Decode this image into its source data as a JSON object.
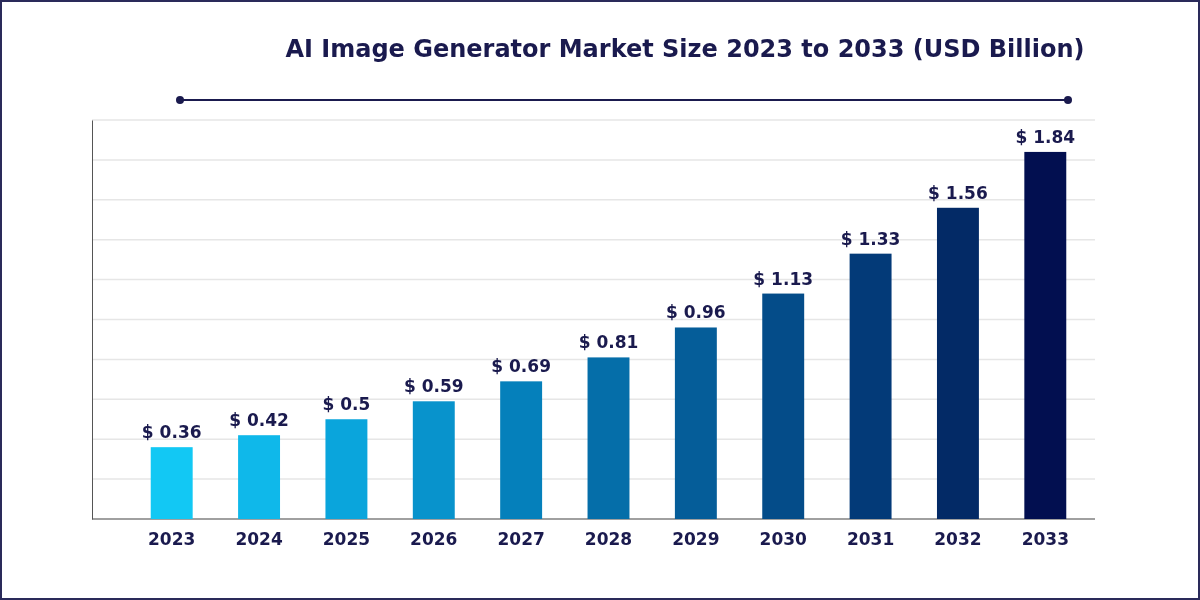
{
  "chart_data": {
    "type": "bar",
    "title": "AI Image Generator Market Size 2023 to 2033 (USD Billion)",
    "categories": [
      "2023",
      "2024",
      "2025",
      "2026",
      "2027",
      "2028",
      "2029",
      "2030",
      "2031",
      "2032",
      "2033"
    ],
    "values": [
      0.36,
      0.42,
      0.5,
      0.59,
      0.69,
      0.81,
      0.96,
      1.13,
      1.33,
      1.56,
      1.84
    ],
    "colors": [
      "#12c8f4",
      "#0fb8ea",
      "#0aa5dc",
      "#0893cc",
      "#0580bb",
      "#056ea9",
      "#055d99",
      "#044c89",
      "#033a78",
      "#032a66",
      "#020f50"
    ],
    "value_labels": [
      "$ 0.36",
      "$ 0.42",
      "$ 0.5",
      "$ 0.59",
      "$ 0.69",
      "$ 0.81",
      "$ 0.96",
      "$ 1.13",
      "$ 1.33",
      "$ 1.56",
      "$ 1.84"
    ],
    "ylim": [
      0,
      2
    ],
    "yticks": [
      {
        "value": 0,
        "label": null
      },
      {
        "value": 0.2,
        "label": null
      },
      {
        "value": 0.4,
        "label": null
      },
      {
        "value": 0.6,
        "label": null
      },
      {
        "value": 0.8,
        "label": null
      },
      {
        "value": 1,
        "label": null
      },
      {
        "value": 1.2,
        "label": null
      },
      {
        "value": 1.4,
        "label": null
      },
      {
        "value": 1.6,
        "label": null
      },
      {
        "value": 1.8,
        "label": null
      },
      {
        "value": 2,
        "label": null
      }
    ],
    "tick_labels": "x",
    "grid": "y"
  }
}
